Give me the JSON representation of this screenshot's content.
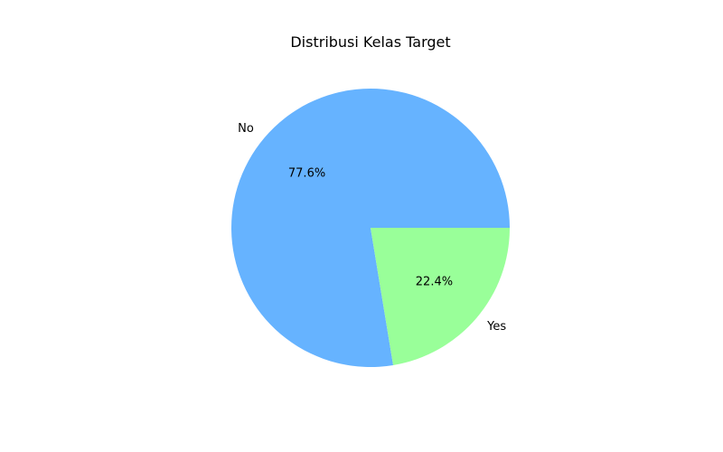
{
  "chart_data": {
    "type": "pie",
    "title": "Distribusi Kelas Target",
    "categories": [
      "No",
      "Yes"
    ],
    "values": [
      77.6,
      22.4
    ],
    "value_labels": [
      "77.6%",
      "22.4%"
    ],
    "colors": [
      "#66b3ff",
      "#99ff99"
    ],
    "start_angle": 0,
    "direction": "counterclockwise",
    "legend": "none"
  }
}
